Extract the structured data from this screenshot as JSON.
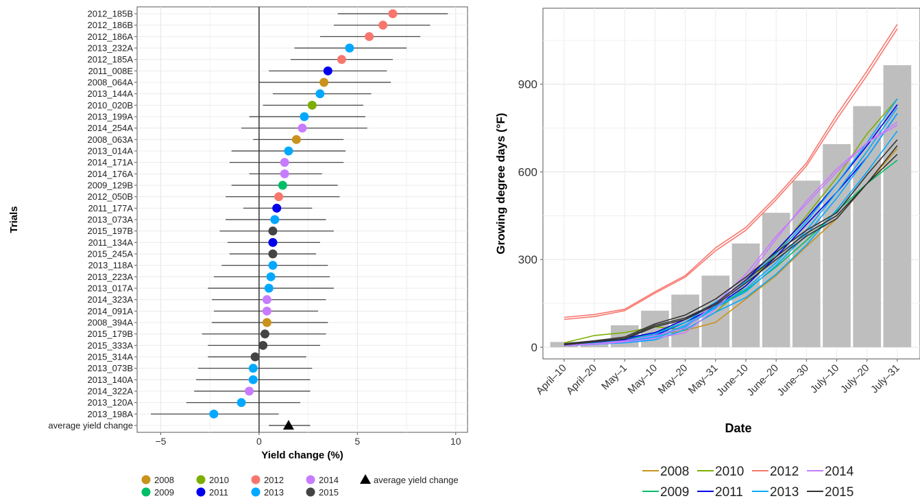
{
  "chart_data": [
    {
      "type": "scatter",
      "xlabel": "Yield change (%)",
      "ylabel": "Trials",
      "xlim": [
        -6.2,
        10.6
      ],
      "xticks": [
        -5,
        0,
        5,
        10
      ],
      "grid": true,
      "legend_position": "bottom",
      "trials": [
        {
          "label": "2012_185B",
          "year": "2012",
          "value": 6.8,
          "low": 4.0,
          "high": 9.6
        },
        {
          "label": "2012_186B",
          "year": "2012",
          "value": 6.3,
          "low": 3.8,
          "high": 8.7
        },
        {
          "label": "2012_186A",
          "year": "2012",
          "value": 5.6,
          "low": 3.1,
          "high": 8.2
        },
        {
          "label": "2013_232A",
          "year": "2013",
          "value": 4.6,
          "low": 1.8,
          "high": 7.5
        },
        {
          "label": "2012_185A",
          "year": "2012",
          "value": 4.2,
          "low": 1.6,
          "high": 6.8
        },
        {
          "label": "2011_008E",
          "year": "2011",
          "value": 3.5,
          "low": 0.5,
          "high": 6.5
        },
        {
          "label": "2008_064A",
          "year": "2008",
          "value": 3.3,
          "low": 0.0,
          "high": 6.7
        },
        {
          "label": "2013_144A",
          "year": "2013",
          "value": 3.1,
          "low": 0.7,
          "high": 5.7
        },
        {
          "label": "2010_020B",
          "year": "2010",
          "value": 2.7,
          "low": 0.2,
          "high": 5.3
        },
        {
          "label": "2013_199A",
          "year": "2013",
          "value": 2.3,
          "low": -0.5,
          "high": 5.4
        },
        {
          "label": "2014_254A",
          "year": "2014",
          "value": 2.2,
          "low": -0.9,
          "high": 5.5
        },
        {
          "label": "2008_063A",
          "year": "2008",
          "value": 1.9,
          "low": -0.3,
          "high": 4.3
        },
        {
          "label": "2013_014A",
          "year": "2013",
          "value": 1.5,
          "low": -1.4,
          "high": 4.4
        },
        {
          "label": "2014_171A",
          "year": "2014",
          "value": 1.3,
          "low": -1.5,
          "high": 4.3
        },
        {
          "label": "2014_176A",
          "year": "2014",
          "value": 1.3,
          "low": -0.5,
          "high": 3.2
        },
        {
          "label": "2009_129B",
          "year": "2009",
          "value": 1.2,
          "low": -1.4,
          "high": 4.0
        },
        {
          "label": "2012_050B",
          "year": "2012",
          "value": 1.0,
          "low": -1.7,
          "high": 4.1
        },
        {
          "label": "2011_177A",
          "year": "2011",
          "value": 0.9,
          "low": -0.8,
          "high": 2.7
        },
        {
          "label": "2013_073A",
          "year": "2013",
          "value": 0.8,
          "low": -1.7,
          "high": 3.4
        },
        {
          "label": "2015_197B",
          "year": "2015",
          "value": 0.7,
          "low": -2.0,
          "high": 3.8
        },
        {
          "label": "2011_134A",
          "year": "2011",
          "value": 0.7,
          "low": -1.6,
          "high": 3.1
        },
        {
          "label": "2015_245A",
          "year": "2015",
          "value": 0.7,
          "low": -1.5,
          "high": 2.9
        },
        {
          "label": "2013_118A",
          "year": "2013",
          "value": 0.7,
          "low": -1.9,
          "high": 3.5
        },
        {
          "label": "2013_223A",
          "year": "2013",
          "value": 0.6,
          "low": -2.3,
          "high": 3.6
        },
        {
          "label": "2013_017A",
          "year": "2013",
          "value": 0.5,
          "low": -2.6,
          "high": 3.8
        },
        {
          "label": "2014_323A",
          "year": "2014",
          "value": 0.4,
          "low": -2.4,
          "high": 3.4
        },
        {
          "label": "2014_091A",
          "year": "2014",
          "value": 0.4,
          "low": -2.3,
          "high": 3.0
        },
        {
          "label": "2008_394A",
          "year": "2008",
          "value": 0.4,
          "low": -2.4,
          "high": 3.5
        },
        {
          "label": "2015_179B",
          "year": "2015",
          "value": 0.3,
          "low": -2.9,
          "high": 3.4
        },
        {
          "label": "2015_333A",
          "year": "2015",
          "value": 0.2,
          "low": -2.6,
          "high": 3.1
        },
        {
          "label": "2015_314A",
          "year": "2015",
          "value": -0.2,
          "low": -2.6,
          "high": 2.4
        },
        {
          "label": "2013_073B",
          "year": "2013",
          "value": -0.3,
          "low": -3.1,
          "high": 2.7
        },
        {
          "label": "2013_140A",
          "year": "2013",
          "value": -0.3,
          "low": -3.2,
          "high": 2.6
        },
        {
          "label": "2014_322A",
          "year": "2014",
          "value": -0.5,
          "low": -3.3,
          "high": 2.6
        },
        {
          "label": "2013_120A",
          "year": "2013",
          "value": -0.9,
          "low": -3.7,
          "high": 2.1
        },
        {
          "label": "2013_198A",
          "year": "2013",
          "value": -2.3,
          "low": -5.5,
          "high": 1.0
        }
      ],
      "average": {
        "label": "average yield change",
        "value": 1.5,
        "low": 0.5,
        "high": 2.6
      },
      "legend": [
        {
          "name": "2008",
          "color": "#C9921A"
        },
        {
          "name": "2010",
          "color": "#7CAE00"
        },
        {
          "name": "2012",
          "color": "#F8766D"
        },
        {
          "name": "2014",
          "color": "#C77CFF"
        },
        {
          "name": "average yield change",
          "shape": "triangle",
          "color": "#000000"
        },
        {
          "name": "2009",
          "color": "#00BE67"
        },
        {
          "name": "2011",
          "color": "#0000EE"
        },
        {
          "name": "2013",
          "color": "#00A9FF"
        },
        {
          "name": "2015",
          "color": "#444444"
        }
      ]
    },
    {
      "type": "line",
      "xlabel": "Date",
      "ylabel": "Growing degree days (°F)",
      "categories": [
        "April–10",
        "April–20",
        "May–1",
        "May–10",
        "May–20",
        "May–31",
        "June–10",
        "June–20",
        "June–30",
        "July–10",
        "July–20",
        "July–31"
      ],
      "ylim": [
        -40,
        1160
      ],
      "yticks": [
        0,
        300,
        600,
        900
      ],
      "grid": true,
      "legend_position": "bottom",
      "bars": [
        18,
        20,
        75,
        125,
        180,
        245,
        355,
        460,
        570,
        695,
        825,
        965
      ],
      "bar_color": "#BEBEBE",
      "series": [
        {
          "name": "2008",
          "color": "#C9921A",
          "lines": [
            [
              5,
              12,
              22,
              40,
              58,
              85,
              165,
              245,
              345,
              440,
              560,
              680
            ]
          ]
        },
        {
          "name": "2009",
          "color": "#00BE67",
          "lines": [
            [
              8,
              15,
              25,
              50,
              85,
              135,
              195,
              275,
              365,
              465,
              560,
              640
            ]
          ]
        },
        {
          "name": "2010",
          "color": "#7CAE00",
          "lines": [
            [
              15,
              40,
              50,
              70,
              60,
              120,
              210,
              320,
              450,
              580,
              730,
              850
            ]
          ]
        },
        {
          "name": "2011",
          "color": "#0000EE",
          "lines": [
            [
              5,
              10,
              25,
              40,
              85,
              140,
              210,
              310,
              420,
              530,
              650,
              800
            ],
            [
              8,
              15,
              30,
              50,
              95,
              150,
              230,
              330,
              440,
              560,
              690,
              830
            ]
          ]
        },
        {
          "name": "2012",
          "color": "#F8766D",
          "lines": [
            [
              95,
              105,
              125,
              185,
              240,
              330,
              400,
              505,
              620,
              780,
              930,
              1090
            ],
            [
              102,
              112,
              130,
              190,
              245,
              340,
              410,
              515,
              630,
              795,
              945,
              1105
            ]
          ]
        },
        {
          "name": "2013",
          "color": "#00A9FF",
          "lines": [
            [
              5,
              10,
              15,
              25,
              60,
              120,
              170,
              250,
              350,
              470,
              600,
              740
            ],
            [
              6,
              12,
              20,
              35,
              75,
              140,
              200,
              290,
              400,
              530,
              670,
              820
            ],
            [
              5,
              9,
              18,
              30,
              70,
              135,
              190,
              280,
              385,
              510,
              650,
              800
            ],
            [
              7,
              14,
              22,
              45,
              85,
              155,
              225,
              320,
              430,
              560,
              700,
              850
            ]
          ]
        },
        {
          "name": "2014",
          "color": "#C77CFF",
          "lines": [
            [
              5,
              10,
              18,
              30,
              50,
              130,
              235,
              370,
              500,
              610,
              700,
              760
            ],
            [
              6,
              12,
              22,
              40,
              65,
              150,
              250,
              380,
              490,
              600,
              700,
              770
            ]
          ]
        },
        {
          "name": "2015",
          "color": "#333333",
          "lines": [
            [
              10,
              20,
              30,
              75,
              100,
              150,
              230,
              310,
              390,
              450,
              560,
              660
            ],
            [
              8,
              18,
              28,
              70,
              95,
              145,
              220,
              300,
              380,
              440,
              560,
              690
            ],
            [
              12,
              22,
              35,
              80,
              110,
              165,
              240,
              325,
              400,
              460,
              590,
              710
            ]
          ]
        }
      ],
      "legend": [
        {
          "name": "2008",
          "color": "#C9921A"
        },
        {
          "name": "2010",
          "color": "#7CAE00"
        },
        {
          "name": "2012",
          "color": "#F8766D"
        },
        {
          "name": "2014",
          "color": "#C77CFF"
        },
        {
          "name": "2009",
          "color": "#00BE67"
        },
        {
          "name": "2011",
          "color": "#0000EE"
        },
        {
          "name": "2013",
          "color": "#00A9FF"
        },
        {
          "name": "2015",
          "color": "#333333"
        }
      ]
    }
  ]
}
